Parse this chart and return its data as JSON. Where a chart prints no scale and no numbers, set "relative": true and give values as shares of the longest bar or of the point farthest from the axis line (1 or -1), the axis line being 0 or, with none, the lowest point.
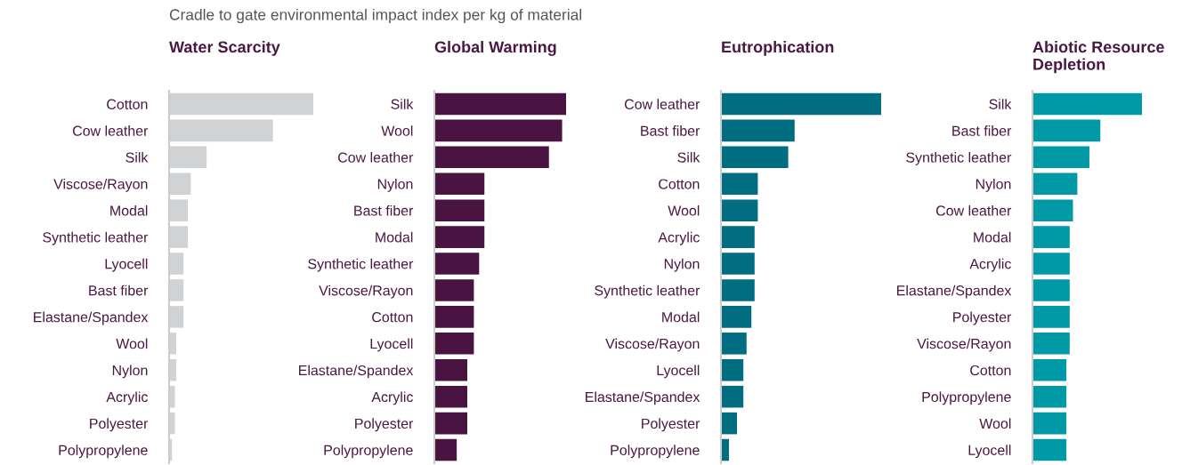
{
  "chart_data": [
    {
      "type": "bar",
      "orientation": "horizontal",
      "relative": true,
      "tick_labels": "y",
      "title": "Water Scarcity",
      "annotations": [
        "Cradle to gate environmental impact index per kg of material"
      ],
      "color": "#d1d2d4",
      "categories": [
        "Cotton",
        "Cow leather",
        "Silk",
        "Viscose/Rayon",
        "Modal",
        "Synthetic leather",
        "Lyocell",
        "Bast fiber",
        "Elastane/Spandex",
        "Wool",
        "Nylon",
        "Acrylic",
        "Polyester",
        "Polypropylene"
      ],
      "values": [
        1,
        0.72,
        0.26,
        0.15,
        0.13,
        0.13,
        0.1,
        0.1,
        0.1,
        0.05,
        0.05,
        0.04,
        0.04,
        0.02
      ]
    },
    {
      "type": "bar",
      "orientation": "horizontal",
      "relative": true,
      "tick_labels": "y",
      "title": "Global Warming",
      "color": "#4a1442",
      "categories": [
        "Silk",
        "Wool",
        "Cow leather",
        "Nylon",
        "Bast fiber",
        "Modal",
        "Synthetic leather",
        "Viscose/Rayon",
        "Cotton",
        "Lyocell",
        "Elastane/Spandex",
        "Acrylic",
        "Polyester",
        "Polypropylene"
      ],
      "values": [
        1,
        0.97,
        0.87,
        0.38,
        0.38,
        0.38,
        0.34,
        0.3,
        0.3,
        0.3,
        0.25,
        0.25,
        0.25,
        0.17
      ]
    },
    {
      "type": "bar",
      "orientation": "horizontal",
      "relative": true,
      "tick_labels": "y",
      "title": "Eutrophication",
      "color": "#006e80",
      "categories": [
        "Cow leather",
        "Bast fiber",
        "Silk",
        "Cotton",
        "Wool",
        "Acrylic",
        "Nylon",
        "Synthetic leather",
        "Modal",
        "Viscose/Rayon",
        "Lyocell",
        "Elastane/Spandex",
        "Polyester",
        "Polypropylene"
      ],
      "values": [
        1,
        0.46,
        0.42,
        0.23,
        0.23,
        0.21,
        0.21,
        0.21,
        0.19,
        0.16,
        0.14,
        0.14,
        0.1,
        0.05
      ]
    },
    {
      "type": "bar",
      "orientation": "horizontal",
      "relative": true,
      "tick_labels": "y",
      "title": "Abiotic Resource Depletion",
      "color": "#0099a6",
      "categories": [
        "Silk",
        "Bast fiber",
        "Synthetic leather",
        "Nylon",
        "Cow leather",
        "Modal",
        "Acrylic",
        "Elastane/Spandex",
        "Polyester",
        "Viscose/Rayon",
        "Cotton",
        "Polypropylene",
        "Wool",
        "Lyocell"
      ],
      "values": [
        1,
        0.62,
        0.52,
        0.41,
        0.37,
        0.34,
        0.34,
        0.34,
        0.34,
        0.34,
        0.31,
        0.31,
        0.31,
        0.31
      ]
    }
  ]
}
